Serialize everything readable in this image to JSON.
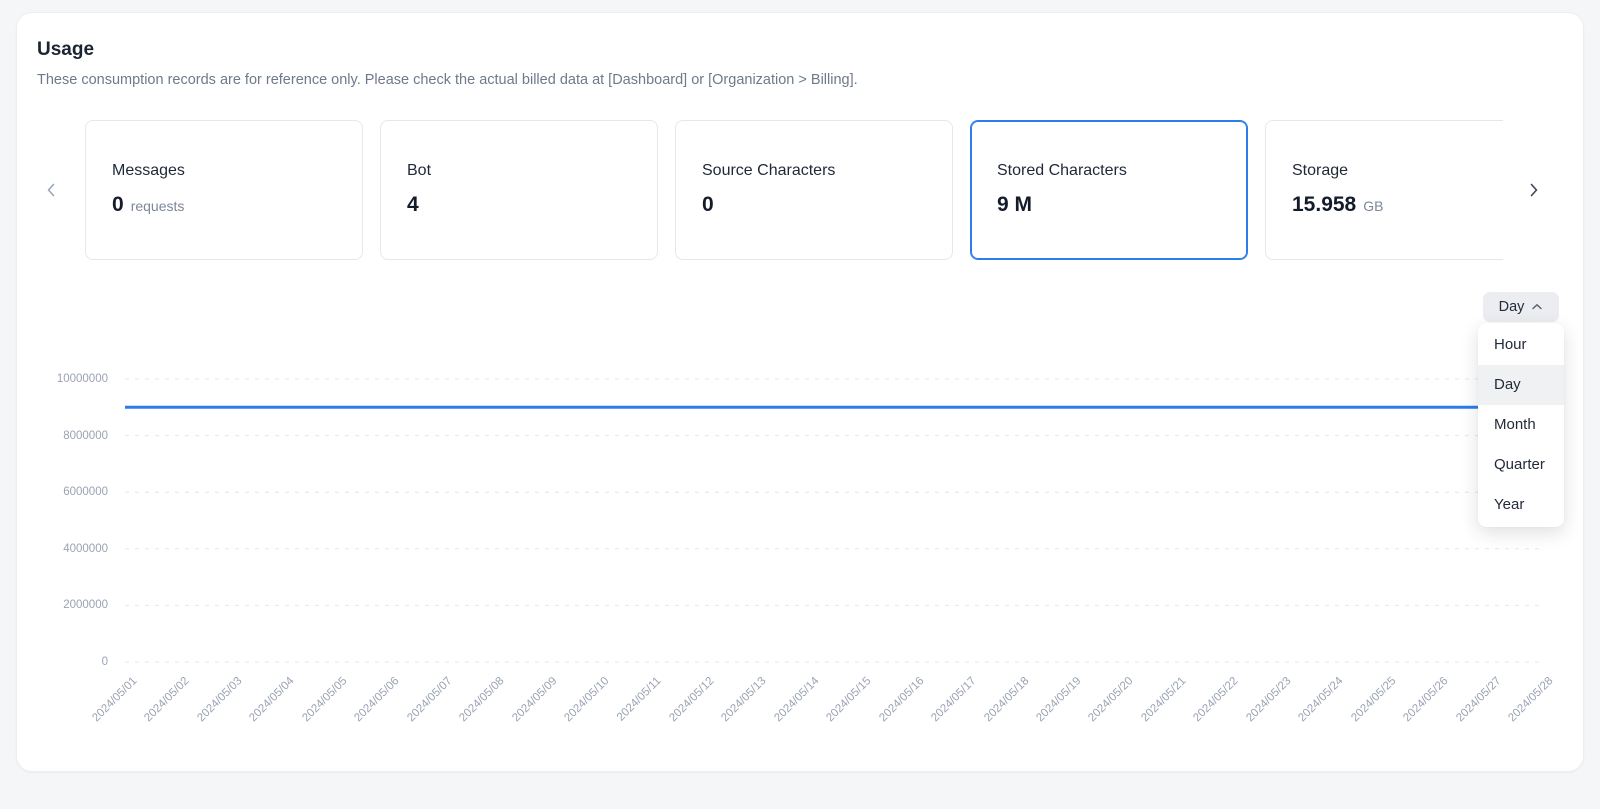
{
  "header": {
    "title": "Usage",
    "subtitle": "These consumption records are for reference only. Please check the actual billed data at [Dashboard] or [Organization > Billing]."
  },
  "cards": [
    {
      "label": "Messages",
      "value": "0",
      "unit": "requests",
      "selected": false
    },
    {
      "label": "Bot",
      "value": "4",
      "unit": "",
      "selected": false
    },
    {
      "label": "Source Characters",
      "value": "0",
      "unit": "",
      "selected": false
    },
    {
      "label": "Stored Characters",
      "value": "9 M",
      "unit": "",
      "selected": true
    },
    {
      "label": "Storage",
      "value": "15.958",
      "unit": "GB",
      "selected": false
    }
  ],
  "granularity": {
    "selected": "Day",
    "open": true,
    "options": [
      "Hour",
      "Day",
      "Month",
      "Quarter",
      "Year"
    ]
  },
  "chart_data": {
    "type": "line",
    "title": "Stored Characters usage by day",
    "x": [
      "2024/05/01",
      "2024/05/02",
      "2024/05/03",
      "2024/05/04",
      "2024/05/05",
      "2024/05/06",
      "2024/05/07",
      "2024/05/08",
      "2024/05/09",
      "2024/05/10",
      "2024/05/11",
      "2024/05/12",
      "2024/05/13",
      "2024/05/14",
      "2024/05/15",
      "2024/05/16",
      "2024/05/17",
      "2024/05/18",
      "2024/05/19",
      "2024/05/20",
      "2024/05/21",
      "2024/05/22",
      "2024/05/23",
      "2024/05/24",
      "2024/05/25",
      "2024/05/26",
      "2024/05/27",
      "2024/05/28"
    ],
    "series": [
      {
        "name": "Stored Characters",
        "values": [
          9000000,
          9000000,
          9000000,
          9000000,
          9000000,
          9000000,
          9000000,
          9000000,
          9000000,
          9000000,
          9000000,
          9000000,
          9000000,
          9000000,
          9000000,
          9000000,
          9000000,
          9000000,
          9000000,
          9000000,
          9000000,
          9000000,
          9000000,
          9000000,
          9000000,
          9000000,
          9000000,
          9000000
        ]
      }
    ],
    "ylim": [
      0,
      10000000
    ],
    "yticks": [
      0,
      2000000,
      4000000,
      6000000,
      8000000,
      10000000
    ],
    "grid": "horizontal-dashed",
    "legend": "none"
  },
  "colors": {
    "accent": "#2e7ceb",
    "line": "#2b7cea",
    "grid": "#e4e7eb",
    "axis_text": "#9aa3b2"
  }
}
